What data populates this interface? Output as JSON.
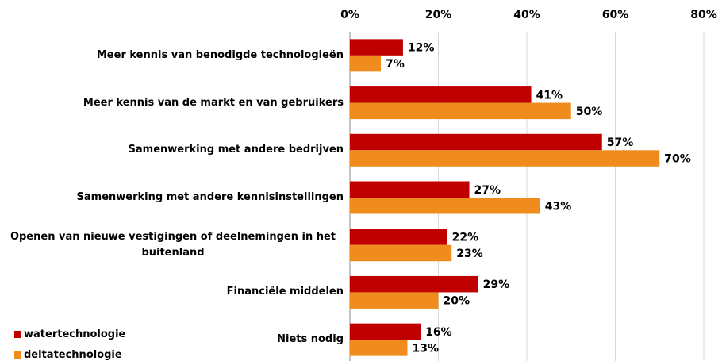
{
  "chart_data": {
    "type": "bar",
    "orientation": "horizontal",
    "categories": [
      "Meer kennis van benodigde technologieën",
      "Meer kennis van de markt en van gebruikers",
      "Samenwerking met andere bedrijven",
      "Samenwerking met andere kennisinstellingen",
      "Openen van nieuwe vestigingen of deelnemingen in het buitenland",
      "Financiële middelen",
      "Niets nodig"
    ],
    "series": [
      {
        "name": "watertechnologie",
        "color": "#c00000",
        "values": [
          12,
          41,
          57,
          27,
          22,
          29,
          16
        ],
        "value_labels": [
          "12%",
          "41%",
          "57%",
          "27%",
          "22%",
          "29%",
          "16%"
        ]
      },
      {
        "name": "deltatechnologie",
        "color": "#f08c1e",
        "values": [
          7,
          50,
          70,
          43,
          23,
          20,
          13
        ],
        "value_labels": [
          "7%",
          "50%",
          "70%",
          "43%",
          "23%",
          "20%",
          "13%"
        ]
      }
    ],
    "xlim": [
      0,
      80
    ],
    "xticks": [
      {
        "value": 0,
        "label": "0%"
      },
      {
        "value": 20,
        "label": "20%"
      },
      {
        "value": 40,
        "label": "40%"
      },
      {
        "value": 60,
        "label": "60%"
      },
      {
        "value": 80,
        "label": "80%"
      }
    ],
    "grid": true,
    "legend": "bottom-left"
  }
}
